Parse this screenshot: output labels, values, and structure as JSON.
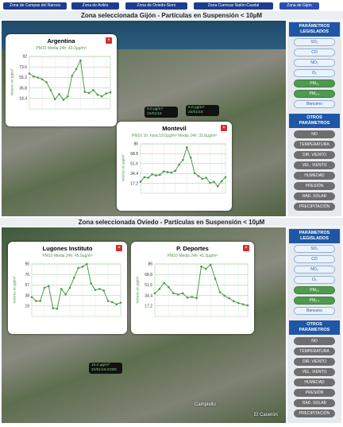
{
  "nav": [
    "Zona de Campas del Narcea",
    "Zona de Avilés",
    "Zona de Oviedo-Siero",
    "Zona Cuencas Nalón-Caudal",
    "Zona de Gijón"
  ],
  "sections": [
    {
      "title": "Zona seleccionada Gijón - Partículas en Suspensión < 10µM",
      "map_labels": [
        "9.0 µg/m³ 22/01/16",
        "5.0 µg/m³ 22/01/16"
      ],
      "popups": [
        {
          "title": "Argentina",
          "subtitle": "PM10 Media 24h: 43.3µg/m³",
          "y_label": "Valores en µg/m³",
          "chart": {
            "type": "line",
            "color": "#4f9a4f",
            "values": [
              62,
              57,
              55,
              52,
              47,
              33,
              17,
              26,
              16,
              22,
              58,
              70,
              85,
              30,
              28,
              33,
              25,
              22,
              27,
              29
            ],
            "ylim": [
              0,
              92
            ],
            "yticks": [
              18.4,
              36.8,
              55.2,
              73.6,
              92
            ],
            "grid": true
          }
        },
        {
          "title": "Montevil",
          "subtitle": "PM10 1h: hora:19.0µg/m³ Media 24h: 31.8µg/m³",
          "y_label": "Valores en µg/m³",
          "chart": {
            "type": "line",
            "color": "#4f9a4f",
            "values": [
              20,
              28,
              27,
              33,
              31,
              32,
              38,
              37,
              36,
              39,
              50,
              58,
              80,
              62,
              35,
              30,
              25,
              27,
              18,
              20,
              12,
              21,
              28
            ],
            "ylim": [
              0,
              86
            ],
            "yticks": [
              17.2,
              34.4,
              51.6,
              68.8,
              86
            ],
            "grid": true
          }
        }
      ],
      "sidebar": {
        "legislated_title": "PARÁMETROS LEGISLADOS",
        "legislated": [
          "SO₂",
          "CO",
          "NO₂",
          "O₃",
          "PM₁₀",
          "PM₂.₅",
          "Benceno"
        ],
        "other_title": "OTROS PARÁMETROS",
        "other": [
          "NO",
          "TEMPERATURA",
          "DIR. VIENTO",
          "VEL. VIENTO",
          "HUMEDAD",
          "PRESIÓN",
          "RAD. SOLAR",
          "PRECIPITACIÓN"
        ]
      }
    },
    {
      "title": "Zona seleccionada Oviedo - Partículas en Suspensión < 10µM",
      "map_labels": [
        "15.0 µg/m³ 22/01/16 8:00h",
        "Campiello",
        "El Caserón"
      ],
      "popups": [
        {
          "title": "Lugones Instituto",
          "subtitle": "PM10 Media 24h: 45.9µg/m³",
          "y_label": "Valores en µg/m³",
          "chart": {
            "type": "line",
            "color": "#4f9a4f",
            "values": [
              35,
              28,
              28,
              52,
              55,
              15,
              14,
              50,
              40,
              52,
              70,
              88,
              90,
              95,
              60,
              48,
              50,
              47,
              28,
              26,
              22,
              25
            ],
            "ylim": [
              0,
              95
            ],
            "yticks": [
              19,
              38,
              57,
              76,
              95
            ],
            "grid": true
          }
        },
        {
          "title": "P. Deportes",
          "subtitle": "PM10 Media 24h: 41.3µg/m³",
          "y_label": "Valores en µg/m³",
          "chart": {
            "type": "line",
            "color": "#4f9a4f",
            "values": [
              38,
              45,
              55,
              48,
              38,
              36,
              38,
              31,
              32,
              30,
              82,
              78,
              85,
              62,
              40,
              34,
              30,
              25,
              22,
              20,
              18
            ],
            "ylim": [
              0,
              86
            ],
            "yticks": [
              17.2,
              34.4,
              51.6,
              68.8,
              86
            ],
            "grid": true
          }
        }
      ],
      "sidebar": {
        "legislated_title": "PARÁMETROS LEGISLADOS",
        "legislated": [
          "SO₂",
          "CO",
          "NO₂",
          "O₃",
          "PM₁₀",
          "PM₂.₅",
          "Benceno"
        ],
        "other_title": "OTROS PARÁMETROS",
        "other": [
          "NO",
          "TEMPERATURA",
          "DIR. VIENTO",
          "VEL. VIENTO",
          "HUMEDAD",
          "PRESIÓN",
          "RAD. SOLAR",
          "PRECIPITACIÓN"
        ]
      }
    }
  ]
}
